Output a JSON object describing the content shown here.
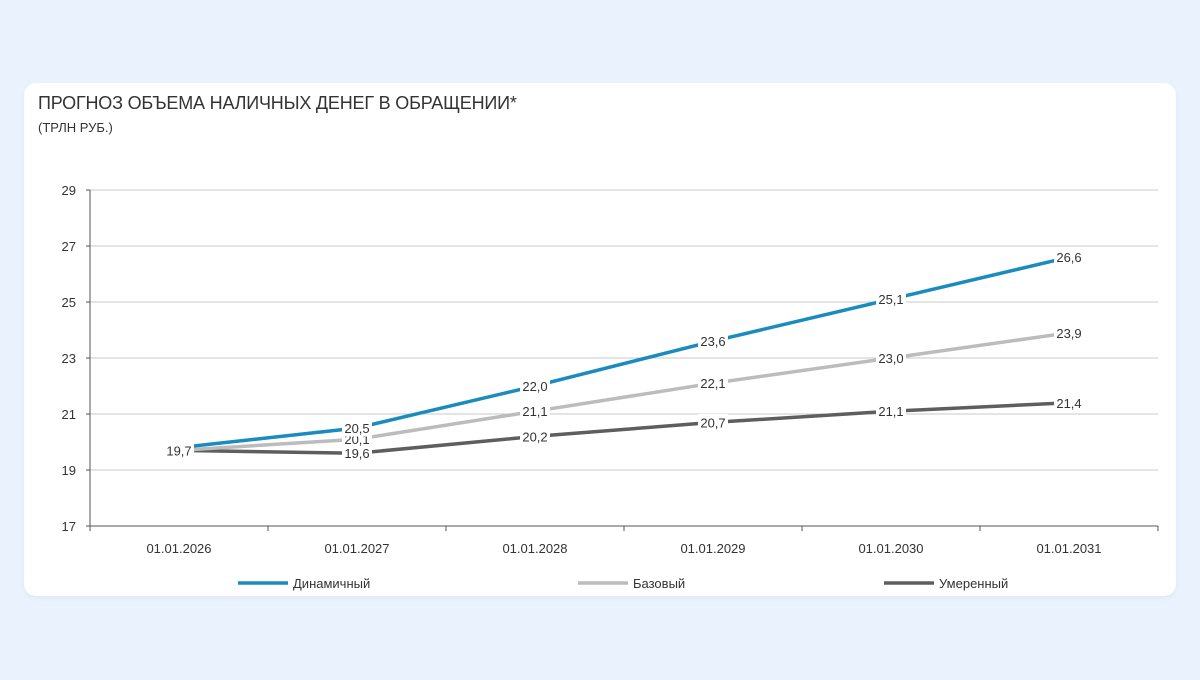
{
  "chart_data": {
    "type": "line",
    "title": "ПРОГНОЗ ОБЪЕМА НАЛИЧНЫХ ДЕНЕГ В ОБРАЩЕНИИ*",
    "subtitle": "(ТРЛН РУБ.)",
    "categories": [
      "01.01.2026",
      "01.01.2027",
      "01.01.2028",
      "01.01.2029",
      "01.01.2030",
      "01.01.2031"
    ],
    "ylim": [
      17,
      29
    ],
    "yticks": [
      17,
      19,
      21,
      23,
      25,
      27,
      29
    ],
    "grid": true,
    "legend_position": "bottom",
    "series": [
      {
        "name": "Динамичный",
        "color": "#1a8bbf",
        "values": [
          19.8,
          20.5,
          22.0,
          23.6,
          25.1,
          26.6
        ],
        "labels": [
          "",
          "20,5",
          "22,0",
          "23,6",
          "25,1",
          "26,6"
        ]
      },
      {
        "name": "Базовый",
        "color": "#bcbcbc",
        "values": [
          19.7,
          20.1,
          21.1,
          22.1,
          23.0,
          23.9
        ],
        "labels": [
          "19,7",
          "20,1",
          "21,1",
          "22,1",
          "23,0",
          "23,9"
        ]
      },
      {
        "name": "Умеренный",
        "color": "#5e5e5e",
        "values": [
          19.7,
          19.6,
          20.2,
          20.7,
          21.1,
          21.4
        ],
        "labels": [
          "",
          "19,6",
          "20,2",
          "20,7",
          "21,1",
          "21,4"
        ]
      }
    ]
  }
}
